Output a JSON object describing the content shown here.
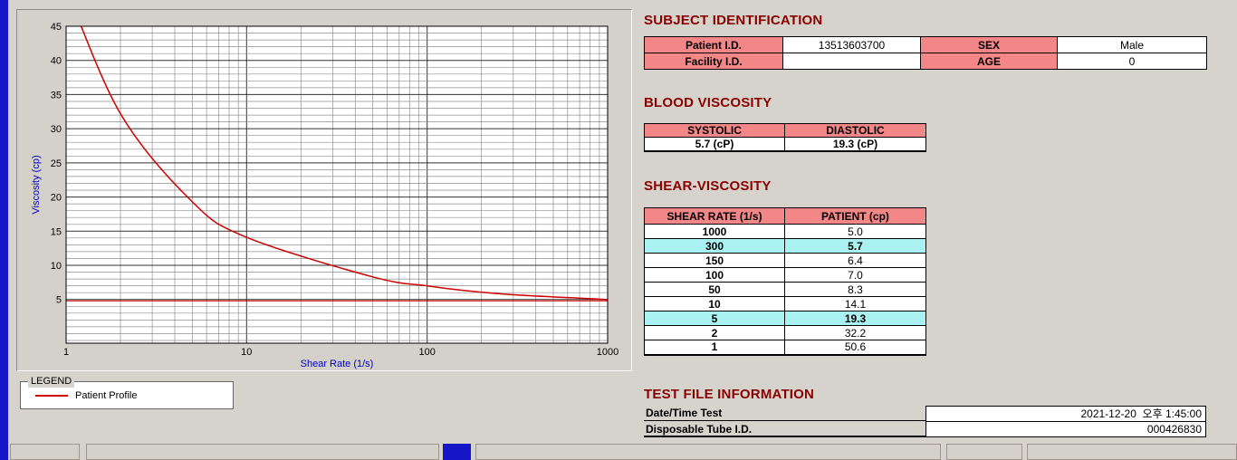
{
  "colors": {
    "accent_blue": "#1616c8",
    "section_title": "#8b0000",
    "table_header_bg": "#f38787",
    "highlight_bg": "#aaf2f2",
    "window_bg": "#d6d3cc"
  },
  "sections": {
    "subject_title": "SUBJECT IDENTIFICATION",
    "blood_title": "BLOOD VISCOSITY",
    "shear_title": "SHEAR-VISCOSITY",
    "testfile_title": "TEST FILE INFORMATION"
  },
  "subject_table": {
    "patient_id_label": "Patient I.D.",
    "patient_id_value": "13513603700",
    "sex_label": "SEX",
    "sex_value": "Male",
    "facility_id_label": "Facility I.D.",
    "facility_id_value": "",
    "age_label": "AGE",
    "age_value": "0"
  },
  "blood_table": {
    "systolic_label": "SYSTOLIC",
    "diastolic_label": "DIASTOLIC",
    "systolic_value": "5.7 (cP)",
    "diastolic_value": "19.3 (cP)"
  },
  "shear_table": {
    "headers": [
      "SHEAR RATE (1/s)",
      "PATIENT (cp)"
    ],
    "rows": [
      {
        "shear": "1000",
        "patient": "5.0",
        "highlight": false
      },
      {
        "shear": "300",
        "patient": "5.7",
        "highlight": true
      },
      {
        "shear": "150",
        "patient": "6.4",
        "highlight": false
      },
      {
        "shear": "100",
        "patient": "7.0",
        "highlight": false
      },
      {
        "shear": "50",
        "patient": "8.3",
        "highlight": false
      },
      {
        "shear": "10",
        "patient": "14.1",
        "highlight": false
      },
      {
        "shear": "5",
        "patient": "19.3",
        "highlight": true
      },
      {
        "shear": "2",
        "patient": "32.2",
        "highlight": false
      },
      {
        "shear": "1",
        "patient": "50.6",
        "highlight": false
      }
    ]
  },
  "test_file": {
    "datetime_label": "Date/Time Test",
    "datetime_value": "2021-12-20  오후 1:45:00",
    "tube_label": "Disposable Tube I.D.",
    "tube_value": "000426830"
  },
  "legend": {
    "box_label": "LEGEND",
    "series_label": "Patient Profile"
  },
  "chart_data": {
    "type": "line",
    "x_scale": "log",
    "xlabel": "Shear Rate (1/s)",
    "ylabel": "Viscosity (cp)",
    "xlim": [
      1,
      1000
    ],
    "ylim": [
      -1.4,
      45
    ],
    "x_ticks": [
      1,
      10,
      100,
      1000
    ],
    "y_ticks": [
      5,
      10,
      15,
      20,
      25,
      30,
      35,
      40,
      45
    ],
    "grid": true,
    "axis_label_color": "#0000cc",
    "x": [
      1,
      2,
      5,
      10,
      50,
      100,
      150,
      300,
      1000
    ],
    "series": [
      {
        "name": "Patient Profile",
        "color": "#cc0000",
        "values": [
          50.6,
          32.2,
          19.3,
          14.1,
          8.3,
          7.0,
          6.4,
          5.7,
          5.0
        ]
      }
    ],
    "baseline": 4.8
  }
}
